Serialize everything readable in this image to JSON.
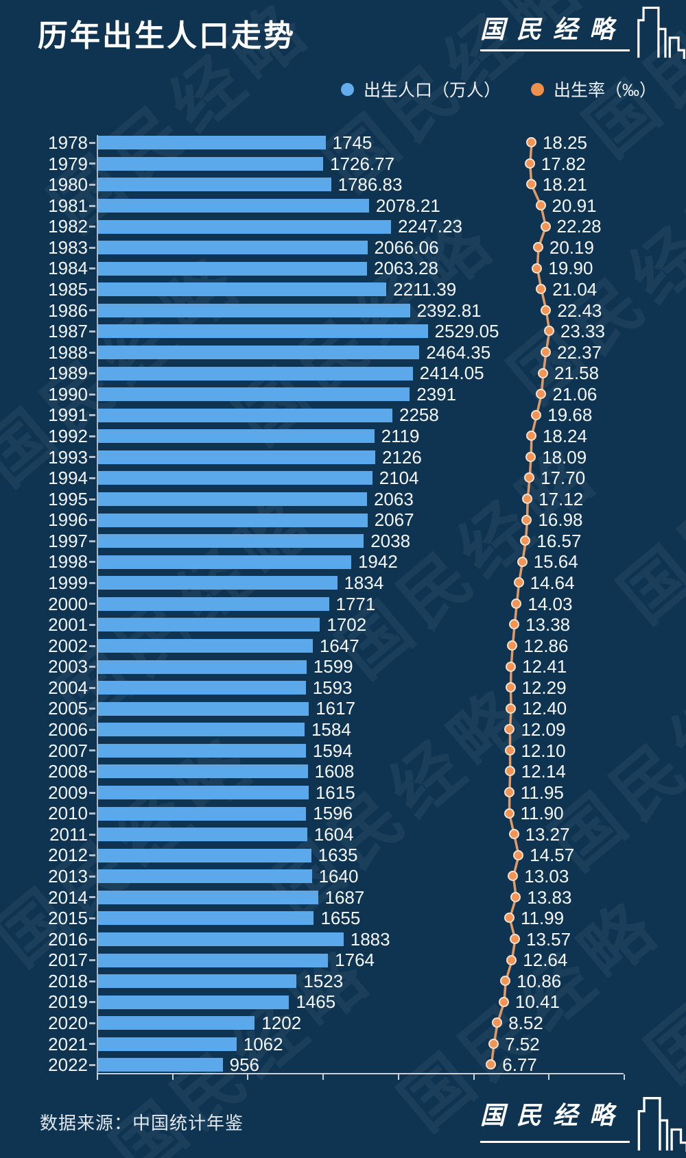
{
  "title": "历年出生人口走势",
  "brand": {
    "name": "国民经略"
  },
  "watermark": "国民经略",
  "legend": [
    {
      "label": "出生人口（万人）",
      "color": "#63adee"
    },
    {
      "label": "出生率（‰）",
      "color": "#f0914b"
    }
  ],
  "source": "数据来源：中国统计年鉴",
  "colors": {
    "background": "#0e3452",
    "bar": "#5ba9eb",
    "rate_line": "#e29a67",
    "rate_dot": "#f29455",
    "rate_dot_ring": "#f3e3d0",
    "text": "#f2f5f7",
    "axis": "#c9d0d8"
  },
  "chart_data": {
    "type": "bar",
    "orientation": "horizontal",
    "title": "历年出生人口走势",
    "categories": [
      1978,
      1979,
      1980,
      1981,
      1982,
      1983,
      1984,
      1985,
      1986,
      1987,
      1988,
      1989,
      1990,
      1991,
      1992,
      1993,
      1994,
      1995,
      1996,
      1997,
      1998,
      1999,
      2000,
      2001,
      2002,
      2003,
      2004,
      2005,
      2006,
      2007,
      2008,
      2009,
      2010,
      2011,
      2012,
      2013,
      2014,
      2015,
      2016,
      2017,
      2018,
      2019,
      2020,
      2021,
      2022
    ],
    "series": [
      {
        "name": "出生人口（万人）",
        "type": "bar",
        "values": [
          1745,
          1726.77,
          1786.83,
          2078.21,
          2247.23,
          2066.06,
          2063.28,
          2211.39,
          2392.81,
          2529.05,
          2464.35,
          2414.05,
          2391,
          2258,
          2119,
          2126,
          2104,
          2063,
          2067,
          2038,
          1942,
          1834,
          1771,
          1702,
          1647,
          1599,
          1593,
          1617,
          1584,
          1594,
          1608,
          1615,
          1596,
          1604,
          1635,
          1640,
          1687,
          1655,
          1883,
          1764,
          1523,
          1465,
          1202,
          1062,
          956
        ]
      },
      {
        "name": "出生率（‰）",
        "type": "line",
        "values": [
          "18.25",
          "17.82",
          "18.21",
          "20.91",
          "22.28",
          "20.19",
          "19.90",
          "21.04",
          "22.43",
          "23.33",
          "22.37",
          "21.58",
          "21.06",
          "19.68",
          "18.24",
          "18.09",
          "17.70",
          "17.12",
          "16.98",
          "16.57",
          "15.64",
          "14.64",
          "14.03",
          "13.38",
          "12.86",
          "12.41",
          "12.29",
          "12.40",
          "12.09",
          "12.10",
          "12.14",
          "11.95",
          "11.90",
          "13.27",
          "14.57",
          "13.03",
          "13.83",
          "11.99",
          "13.57",
          "12.64",
          "10.86",
          "10.41",
          "8.52",
          "7.52",
          "6.77"
        ]
      }
    ],
    "value_labels_shown": true,
    "xlim_population": [
      0,
      4000
    ],
    "x_axis_tick_labels": "none",
    "grid": false,
    "legend_position": "top-right"
  }
}
